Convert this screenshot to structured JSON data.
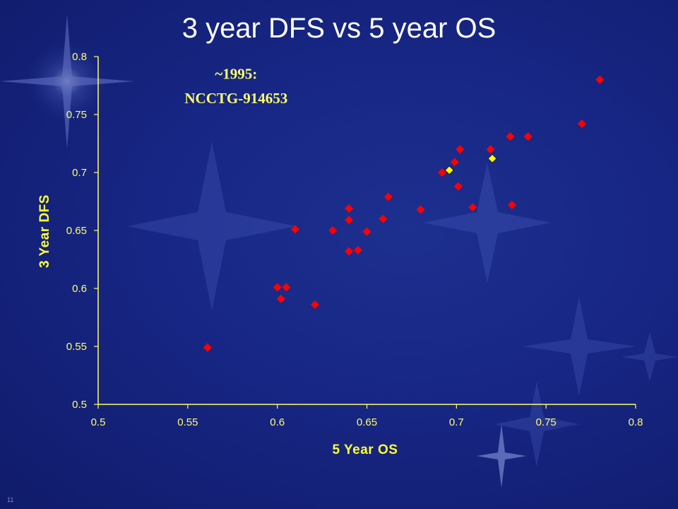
{
  "slide": {
    "title": "3 year DFS vs 5 year OS",
    "page_number": "11"
  },
  "colors": {
    "background": "#172684",
    "axis": "#ffff66",
    "points": "#ff0000",
    "highlight_points": "#ffff00"
  },
  "chart_data": {
    "type": "scatter",
    "title": "3 year DFS vs 5 year OS",
    "xlabel": "5 Year OS",
    "ylabel": "3 Year DFS",
    "xlim": [
      0.5,
      0.8
    ],
    "ylim": [
      0.5,
      0.8
    ],
    "x_ticks": [
      "0.5",
      "0.55",
      "0.6",
      "0.65",
      "0.7",
      "0.75",
      "0.8"
    ],
    "y_ticks": [
      "0.5",
      "0.55",
      "0.6",
      "0.65",
      "0.7",
      "0.75",
      "0.8"
    ],
    "grid": false,
    "legend": "none",
    "annotations": [
      {
        "text": "~1995:",
        "x": 0.577,
        "y": 0.785
      },
      {
        "text": "NCCTG-914653",
        "x": 0.577,
        "y": 0.764
      }
    ],
    "series": [
      {
        "color": "#ff0000",
        "points": [
          {
            "x": 0.561,
            "y": 0.549
          },
          {
            "x": 0.6,
            "y": 0.601
          },
          {
            "x": 0.605,
            "y": 0.601
          },
          {
            "x": 0.602,
            "y": 0.591
          },
          {
            "x": 0.61,
            "y": 0.651
          },
          {
            "x": 0.621,
            "y": 0.586
          },
          {
            "x": 0.631,
            "y": 0.65
          },
          {
            "x": 0.64,
            "y": 0.669
          },
          {
            "x": 0.64,
            "y": 0.659
          },
          {
            "x": 0.64,
            "y": 0.632
          },
          {
            "x": 0.645,
            "y": 0.633
          },
          {
            "x": 0.65,
            "y": 0.649
          },
          {
            "x": 0.659,
            "y": 0.66
          },
          {
            "x": 0.662,
            "y": 0.679
          },
          {
            "x": 0.68,
            "y": 0.668
          },
          {
            "x": 0.692,
            "y": 0.7
          },
          {
            "x": 0.699,
            "y": 0.709
          },
          {
            "x": 0.702,
            "y": 0.72
          },
          {
            "x": 0.701,
            "y": 0.688
          },
          {
            "x": 0.709,
            "y": 0.67
          },
          {
            "x": 0.719,
            "y": 0.72
          },
          {
            "x": 0.73,
            "y": 0.731
          },
          {
            "x": 0.731,
            "y": 0.672
          },
          {
            "x": 0.74,
            "y": 0.731
          },
          {
            "x": 0.77,
            "y": 0.742
          },
          {
            "x": 0.78,
            "y": 0.78
          }
        ]
      },
      {
        "color": "#ffff00",
        "points": [
          {
            "x": 0.696,
            "y": 0.702
          },
          {
            "x": 0.72,
            "y": 0.712
          }
        ]
      }
    ]
  }
}
